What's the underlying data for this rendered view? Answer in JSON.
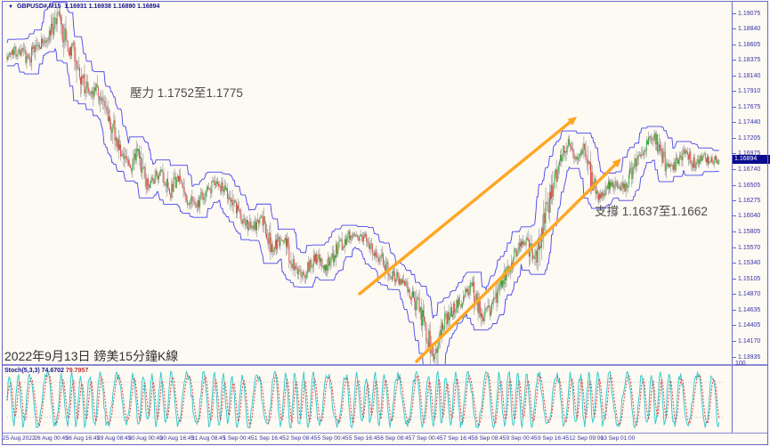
{
  "window": {
    "title": {
      "collapse_icon": "▼",
      "symbol": "GBPUSD#,M15",
      "ohlc": "1.16931 1.16938 1.16890 1.16894"
    }
  },
  "annotations": {
    "resistance": "壓力 1.1752至1.1775",
    "support": "支撐 1.1637至1.1662",
    "caption": "2022年9月13日 鎊美15分鐘K線"
  },
  "price_axis": {
    "ticks": [
      "1.19075",
      "1.18840",
      "1.18605",
      "1.18375",
      "1.18140",
      "1.17910",
      "1.17675",
      "1.17440",
      "1.17205",
      "1.16975",
      "1.16740",
      "1.16505",
      "1.16275",
      "1.16040",
      "1.15805",
      "1.15570",
      "1.15340",
      "1.15105",
      "1.14870",
      "1.14635",
      "1.14405",
      "1.14170",
      "1.13935"
    ],
    "current_price": "1.16894",
    "price_at_top": 1.19248,
    "price_at_bottom": 1.13828
  },
  "time_axis": {
    "labels": [
      "25 Aug 2022",
      "26 Aug 00:45",
      "26 Aug 16:45",
      "29 Aug 08:45",
      "30 Aug 00:45",
      "30 Aug 16:45",
      "31 Aug 08:45",
      "1 Sep 00:45",
      "1 Sep 16:45",
      "2 Sep 08:45",
      "5 Sep 00:45",
      "5 Sep 16:45",
      "6 Sep 08:45",
      "7 Sep 00:45",
      "7 Sep 16:45",
      "8 Sep 08:45",
      "9 Sep 00:45",
      "9 Sep 16:45",
      "12 Sep 09:00",
      "13 Sep 01:00"
    ],
    "start_x": 0,
    "spacing": 35.35
  },
  "indicator": {
    "name": "Stoch(5,3,3)",
    "value_main": "74.6702",
    "value_signal": "79.7957",
    "scale_top_label": "100",
    "levels": [
      20,
      80
    ]
  },
  "chart_data": {
    "type": "candlestick",
    "symbol": "GBPUSD",
    "timeframe": "M15",
    "title": "GBPUSD#,M15",
    "ohlc_current": {
      "open": 1.16931,
      "high": 1.16938,
      "low": 1.1689,
      "close": 1.16894
    },
    "resistance_zone": [
      1.1752,
      1.1775
    ],
    "support_zone": [
      1.1637,
      1.1662
    ],
    "ylim": [
      1.13828,
      1.19248
    ],
    "grid": false,
    "price_path": [
      [
        8,
        1.1843
      ],
      [
        20,
        1.1852
      ],
      [
        32,
        1.184
      ],
      [
        45,
        1.1862
      ],
      [
        56,
        1.1872
      ],
      [
        62,
        1.1895
      ],
      [
        66,
        1.1906
      ],
      [
        70,
        1.1885
      ],
      [
        76,
        1.1845
      ],
      [
        82,
        1.1862
      ],
      [
        88,
        1.183
      ],
      [
        95,
        1.18
      ],
      [
        102,
        1.1786
      ],
      [
        108,
        1.1802
      ],
      [
        116,
        1.177
      ],
      [
        124,
        1.1748
      ],
      [
        132,
        1.1712
      ],
      [
        140,
        1.1688
      ],
      [
        148,
        1.1672
      ],
      [
        156,
        1.1702
      ],
      [
        164,
        1.1652
      ],
      [
        172,
        1.166
      ],
      [
        180,
        1.1668
      ],
      [
        190,
        1.1636
      ],
      [
        200,
        1.166
      ],
      [
        210,
        1.1634
      ],
      [
        220,
        1.1616
      ],
      [
        230,
        1.164
      ],
      [
        242,
        1.1652
      ],
      [
        254,
        1.1644
      ],
      [
        264,
        1.1618
      ],
      [
        274,
        1.1594
      ],
      [
        284,
        1.1586
      ],
      [
        294,
        1.1602
      ],
      [
        306,
        1.1556
      ],
      [
        318,
        1.1572
      ],
      [
        330,
        1.1532
      ],
      [
        342,
        1.1516
      ],
      [
        354,
        1.1542
      ],
      [
        366,
        1.1528
      ],
      [
        380,
        1.1558
      ],
      [
        394,
        1.1576
      ],
      [
        408,
        1.1572
      ],
      [
        422,
        1.155
      ],
      [
        436,
        1.1524
      ],
      [
        450,
        1.1508
      ],
      [
        464,
        1.1484
      ],
      [
        476,
        1.1446
      ],
      [
        487,
        1.1394
      ],
      [
        496,
        1.1442
      ],
      [
        506,
        1.146
      ],
      [
        518,
        1.1478
      ],
      [
        530,
        1.15
      ],
      [
        542,
        1.145
      ],
      [
        554,
        1.1472
      ],
      [
        566,
        1.1508
      ],
      [
        578,
        1.1544
      ],
      [
        590,
        1.1566
      ],
      [
        601,
        1.1538
      ],
      [
        611,
        1.1598
      ],
      [
        621,
        1.1652
      ],
      [
        631,
        1.1698
      ],
      [
        639,
        1.1714
      ],
      [
        647,
        1.1694
      ],
      [
        655,
        1.1706
      ],
      [
        665,
        1.1656
      ],
      [
        675,
        1.1632
      ],
      [
        687,
        1.1656
      ],
      [
        697,
        1.1642
      ],
      [
        707,
        1.1664
      ],
      [
        717,
        1.1688
      ],
      [
        727,
        1.1716
      ],
      [
        735,
        1.1722
      ],
      [
        743,
        1.1696
      ],
      [
        751,
        1.1674
      ],
      [
        761,
        1.1686
      ],
      [
        771,
        1.17
      ],
      [
        780,
        1.1682
      ],
      [
        790,
        1.1692
      ],
      [
        800,
        1.1686
      ],
      [
        808,
        1.16894
      ]
    ],
    "trendlines": [
      {
        "name": "upper-channel",
        "x1": 401,
        "y1": 328,
        "x2": 645,
        "y2": 129
      },
      {
        "name": "lower-channel",
        "x1": 465,
        "y1": 404,
        "x2": 695,
        "y2": 176
      }
    ],
    "stoch_current": [
      74.6702,
      79.7957
    ]
  },
  "colors": {
    "background": "#FDF9F3",
    "frame": "#6a6ac8",
    "candle_up": "#1fae2a",
    "candle_down": "#e23b3b",
    "wick": "#444444",
    "band": "#4646ee",
    "trendline": "#ffa621",
    "axis_text": "#3434a8",
    "price_flag_bg": "#0b0b8f",
    "annotation_text": "#4a4a4a",
    "stoch_k": "#35cdcd",
    "stoch_d": "#e04040",
    "stoch_level": "#c2c2c2"
  }
}
